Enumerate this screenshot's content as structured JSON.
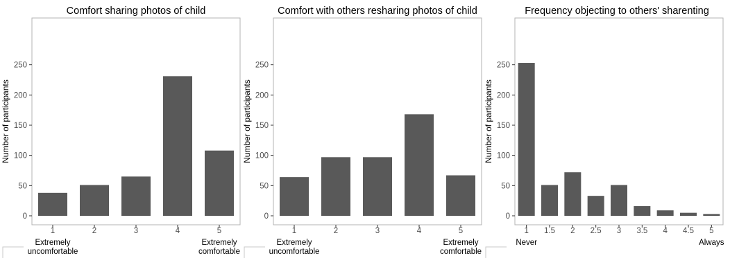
{
  "chart_data": [
    {
      "type": "bar",
      "title": "Comfort sharing photos of child",
      "xlabel": "",
      "ylabel": "Number of participants",
      "categories": [
        "1",
        "2",
        "3",
        "4",
        "5"
      ],
      "values": [
        38,
        51,
        65,
        231,
        108
      ],
      "ylim": [
        0,
        260
      ],
      "yticks": [
        "0",
        "50",
        "100",
        "150",
        "200",
        "250"
      ],
      "end_labels": {
        "left": [
          "Extremely",
          "uncomfortable"
        ],
        "right": [
          "Extremely",
          "comfortable"
        ]
      },
      "grid": false,
      "bar_color": "#595959"
    },
    {
      "type": "bar",
      "title": "Comfort with others resharing photos of child",
      "xlabel": "",
      "ylabel": "Number of participants",
      "categories": [
        "1",
        "2",
        "3",
        "4",
        "5"
      ],
      "values": [
        64,
        97,
        97,
        168,
        67
      ],
      "ylim": [
        0,
        260
      ],
      "yticks": [
        "0",
        "50",
        "100",
        "150",
        "200",
        "250"
      ],
      "end_labels": {
        "left": [
          "Extremely",
          "uncomfortable"
        ],
        "right": [
          "Extremely",
          "comfortable"
        ]
      },
      "grid": false,
      "bar_color": "#595959"
    },
    {
      "type": "bar",
      "title": "Frequency objecting to others' sharenting",
      "xlabel": "",
      "ylabel": "Number of participants",
      "categories": [
        "1",
        "1.5",
        "2",
        "2.5",
        "3",
        "3.5",
        "4",
        "4.5",
        "5"
      ],
      "values": [
        253,
        51,
        72,
        33,
        51,
        16,
        9,
        5,
        3
      ],
      "ylim": [
        0,
        260
      ],
      "yticks": [
        "0",
        "50",
        "100",
        "150",
        "200",
        "250"
      ],
      "end_labels": {
        "left": [
          "Never"
        ],
        "right": [
          "Always"
        ]
      },
      "grid": false,
      "bar_color": "#595959"
    }
  ]
}
